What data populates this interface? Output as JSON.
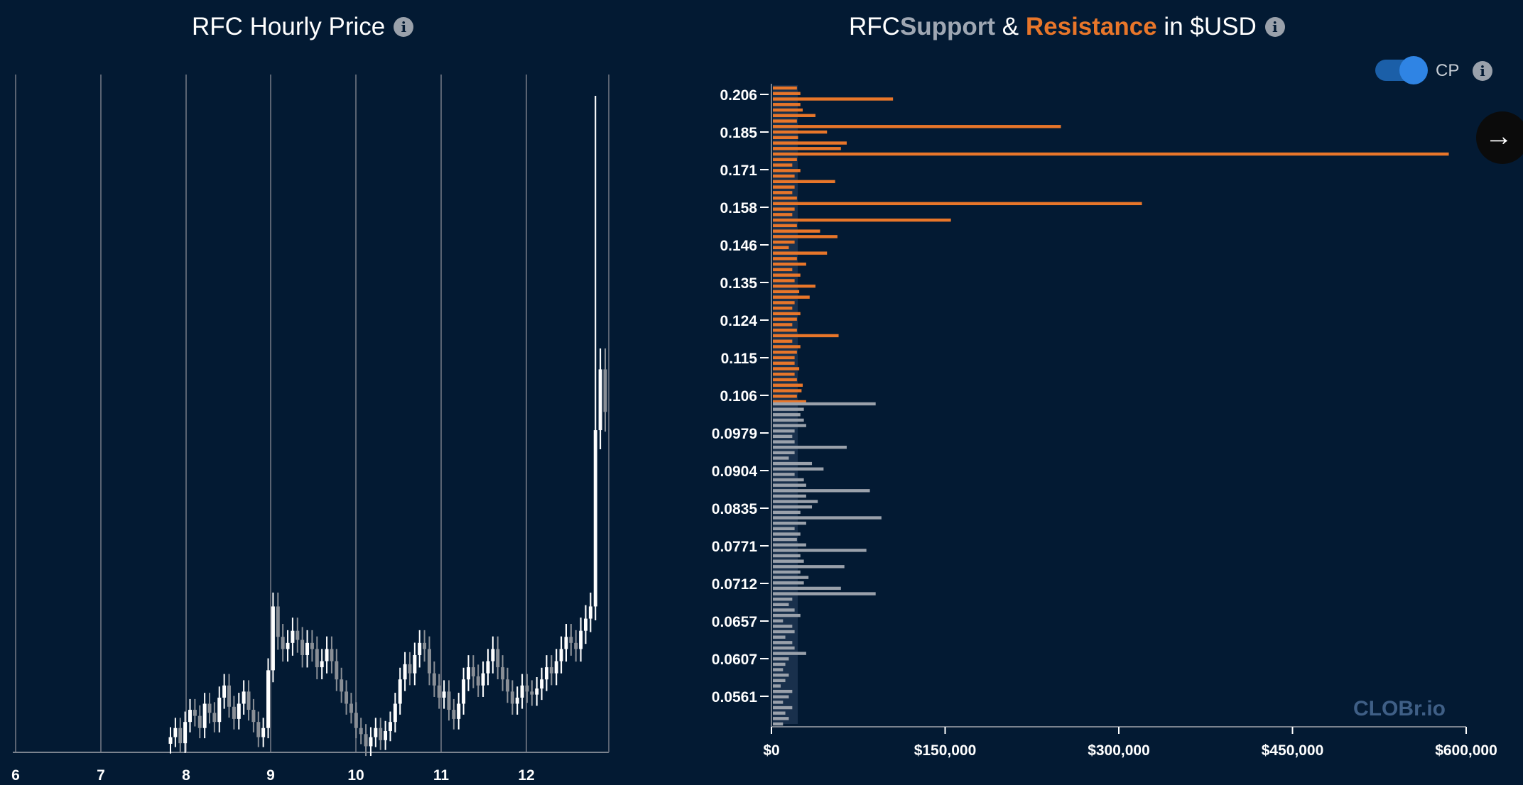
{
  "left_panel": {
    "title": "RFC Hourly Price",
    "info_icon": "info-icon"
  },
  "right_panel": {
    "title_prefix": "RFC ",
    "title_support": "Support",
    "title_amp": " & ",
    "title_resistance": "Resistance",
    "title_suffix": " in $USD",
    "info_icon": "info-icon",
    "toggle_label": "CP",
    "toggle_on": true
  },
  "watermark": "CLOBr.io",
  "colors": {
    "background": "#031a33",
    "support": "#9aa1ab",
    "resistance": "#e8762a",
    "toggle": "#2f84e4"
  },
  "chart_data": [
    {
      "type": "candlestick",
      "title": "RFC Hourly Price",
      "x_tick_labels": [
        "6",
        "7",
        "8",
        "9",
        "10",
        "11",
        "12"
      ],
      "close_series": [
        0.0545,
        0.056,
        0.0535,
        0.057,
        0.059,
        0.058,
        0.056,
        0.06,
        0.0585,
        0.057,
        0.061,
        0.063,
        0.0595,
        0.0575,
        0.06,
        0.062,
        0.059,
        0.057,
        0.0545,
        0.056,
        0.0655,
        0.076,
        0.071,
        0.069,
        0.07,
        0.072,
        0.0705,
        0.068,
        0.07,
        0.069,
        0.066,
        0.067,
        0.069,
        0.067,
        0.064,
        0.062,
        0.06,
        0.0585,
        0.056,
        0.055,
        0.053,
        0.0545,
        0.056,
        0.054,
        0.0555,
        0.057,
        0.06,
        0.064,
        0.0665,
        0.065,
        0.068,
        0.07,
        0.069,
        0.065,
        0.063,
        0.061,
        0.062,
        0.059,
        0.0575,
        0.06,
        0.064,
        0.066,
        0.0645,
        0.063,
        0.065,
        0.067,
        0.069,
        0.066,
        0.064,
        0.062,
        0.06,
        0.061,
        0.063,
        0.062,
        0.0615,
        0.0625,
        0.064,
        0.066,
        0.065,
        0.067,
        0.069,
        0.071,
        0.07,
        0.069,
        0.072,
        0.074,
        0.076,
        0.105,
        0.115,
        0.108
      ],
      "high_last": 0.16
    },
    {
      "type": "horizontal-bar",
      "title": "RFC Support & Resistance in $USD",
      "y_tick_labels": [
        "0.206",
        "0.185",
        "0.171",
        "0.158",
        "0.146",
        "0.135",
        "0.124",
        "0.115",
        "0.106",
        "0.0979",
        "0.0904",
        "0.0835",
        "0.0771",
        "0.0712",
        "0.0657",
        "0.0607",
        "0.0561"
      ],
      "x_tick_labels": [
        "$0",
        "$150,000",
        "$300,000",
        "$450,000",
        "$600,000"
      ],
      "xlim": [
        0,
        600000
      ],
      "series": [
        {
          "name": "Resistance",
          "color": "#e8762a",
          "values": [
            22000,
            25000,
            105000,
            25000,
            27000,
            38000,
            22000,
            250000,
            48000,
            23000,
            65000,
            60000,
            585000,
            22000,
            18000,
            25000,
            20000,
            55000,
            20000,
            18000,
            22000,
            320000,
            20000,
            18000,
            155000,
            22000,
            42000,
            57000,
            20000,
            15000,
            48000,
            22000,
            30000,
            18000,
            25000,
            20000,
            38000,
            24000,
            33000,
            20000,
            18000,
            25000,
            22000,
            18000,
            22000,
            58000,
            18000,
            25000,
            22000,
            20000,
            20000,
            24000,
            20000,
            22000,
            27000,
            26000,
            22000,
            30000
          ]
        },
        {
          "name": "Support",
          "color": "#9aa1ab",
          "values": [
            90000,
            28000,
            25000,
            28000,
            30000,
            20000,
            18000,
            20000,
            65000,
            20000,
            15000,
            35000,
            45000,
            20000,
            28000,
            30000,
            85000,
            30000,
            40000,
            35000,
            25000,
            95000,
            30000,
            20000,
            25000,
            22000,
            30000,
            82000,
            25000,
            28000,
            63000,
            25000,
            32000,
            28000,
            60000,
            90000,
            18000,
            15000,
            20000,
            25000,
            10000,
            18000,
            20000,
            12000,
            18000,
            20000,
            30000,
            15000,
            12000,
            10000,
            15000,
            12000,
            8000,
            18000,
            15000,
            10000,
            18000,
            12000,
            15000,
            10000
          ]
        }
      ]
    }
  ]
}
